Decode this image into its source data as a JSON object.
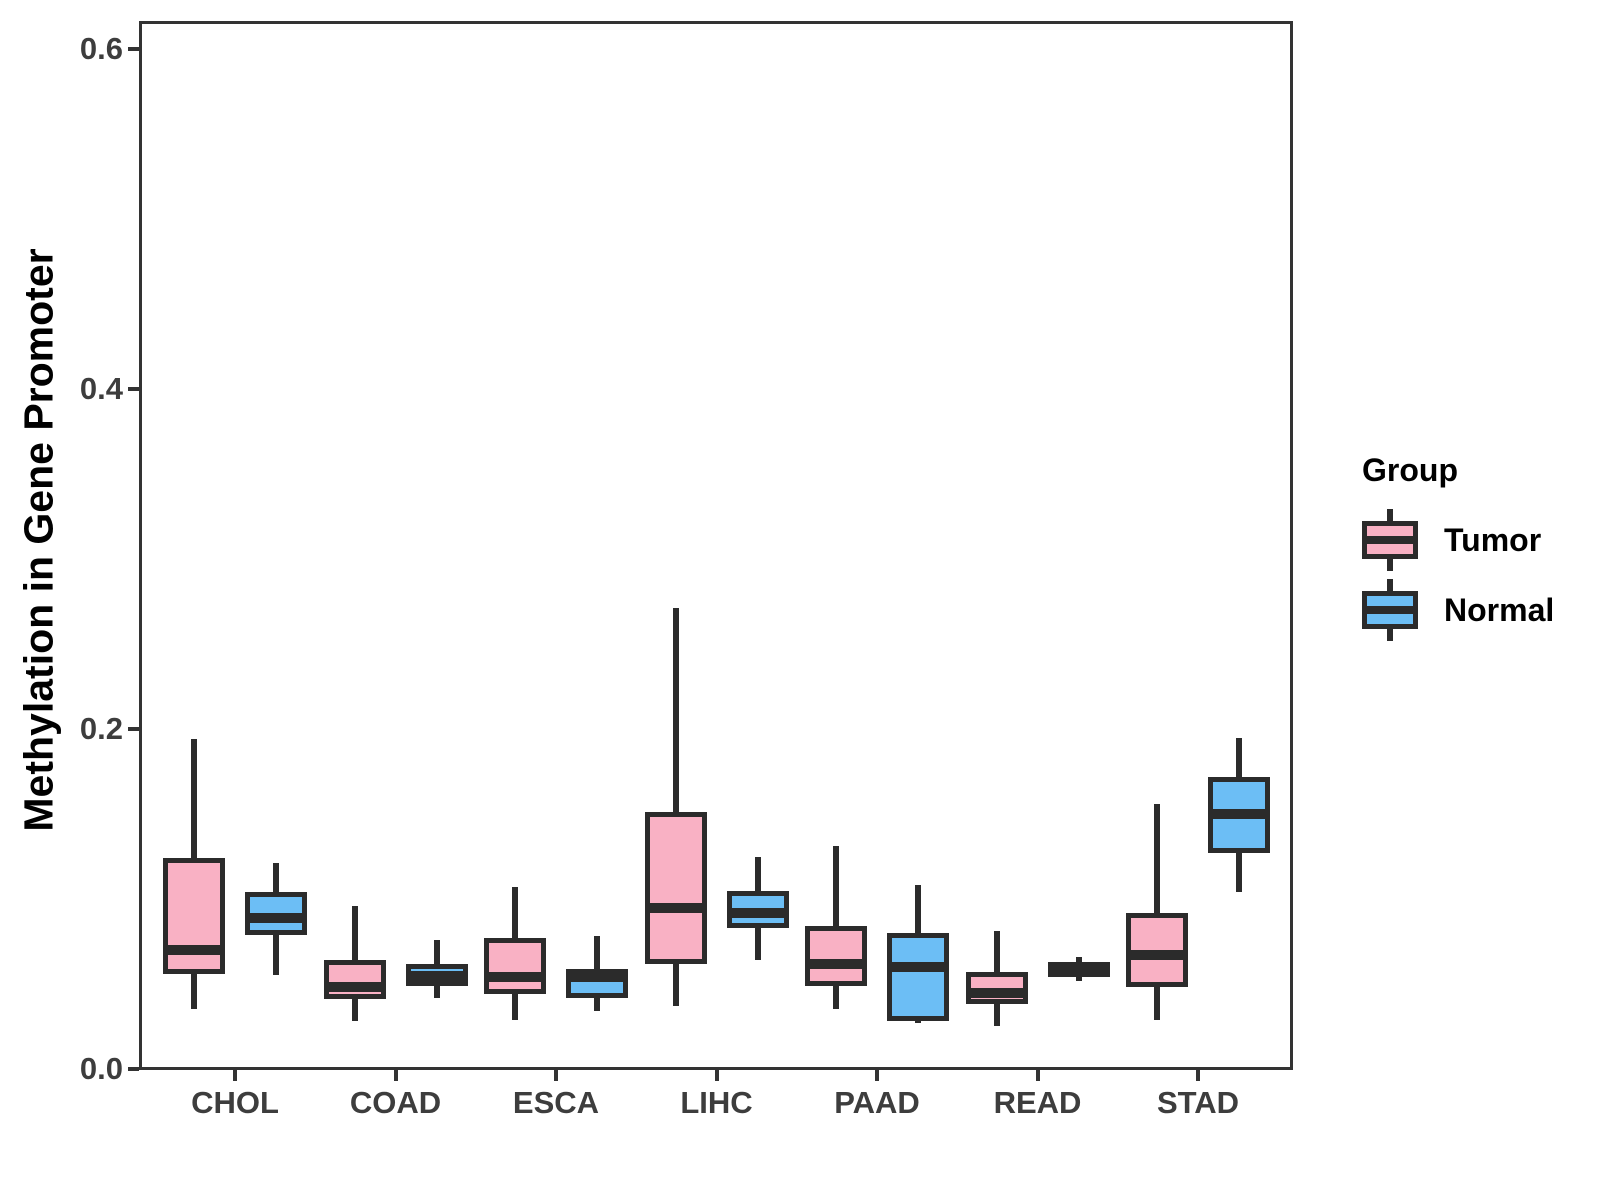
{
  "chart_data": {
    "type": "boxplot",
    "title": "",
    "xlabel": "",
    "ylabel": "Methylation in Gene Promoter",
    "categories": [
      "CHOL",
      "COAD",
      "ESCA",
      "LIHC",
      "PAAD",
      "READ",
      "STAD"
    ],
    "y_axis": {
      "range": [
        0,
        0.615
      ],
      "ticks": [
        {
          "value": 0.0,
          "label": "0.0"
        },
        {
          "value": 0.2,
          "label": "0.2"
        },
        {
          "value": 0.4,
          "label": "0.4"
        },
        {
          "value": 0.6,
          "label": "0.6"
        }
      ]
    },
    "grid": false,
    "legend": {
      "title": "Group",
      "position": "right-center",
      "entries": [
        {
          "label": "Tumor",
          "color": "#F9B1C4"
        },
        {
          "label": "Normal",
          "color": "#6CBEF5"
        }
      ]
    },
    "colors": {
      "tumor_fill": "#F9B1C4",
      "normal_fill": "#6CBEF5",
      "stroke": "#2B2B2B",
      "panel_border": "#333333",
      "tick_text": "#3D3D3D",
      "axis_title_text": "#000000"
    },
    "series": [
      {
        "name": "Tumor",
        "color": "#F9B1C4",
        "boxes": [
          {
            "category": "CHOL",
            "min": 0.035,
            "q1": 0.056,
            "median": 0.07,
            "q3": 0.124,
            "max": 0.194
          },
          {
            "category": "COAD",
            "min": 0.028,
            "q1": 0.041,
            "median": 0.048,
            "q3": 0.064,
            "max": 0.096
          },
          {
            "category": "ESCA",
            "min": 0.029,
            "q1": 0.044,
            "median": 0.054,
            "q3": 0.077,
            "max": 0.107
          },
          {
            "category": "LIHC",
            "min": 0.037,
            "q1": 0.062,
            "median": 0.095,
            "q3": 0.151,
            "max": 0.271
          },
          {
            "category": "PAAD",
            "min": 0.035,
            "q1": 0.049,
            "median": 0.062,
            "q3": 0.084,
            "max": 0.131
          },
          {
            "category": "READ",
            "min": 0.025,
            "q1": 0.038,
            "median": 0.045,
            "q3": 0.057,
            "max": 0.081
          },
          {
            "category": "STAD",
            "min": 0.029,
            "q1": 0.048,
            "median": 0.067,
            "q3": 0.092,
            "max": 0.156
          }
        ]
      },
      {
        "name": "Normal",
        "color": "#6CBEF5",
        "boxes": [
          {
            "category": "CHOL",
            "min": 0.055,
            "q1": 0.079,
            "median": 0.089,
            "q3": 0.104,
            "max": 0.121
          },
          {
            "category": "COAD",
            "min": 0.042,
            "q1": 0.049,
            "median": 0.055,
            "q3": 0.062,
            "max": 0.076
          },
          {
            "category": "ESCA",
            "min": 0.034,
            "q1": 0.042,
            "median": 0.054,
            "q3": 0.059,
            "max": 0.078
          },
          {
            "category": "LIHC",
            "min": 0.064,
            "q1": 0.083,
            "median": 0.092,
            "q3": 0.105,
            "max": 0.125
          },
          {
            "category": "PAAD",
            "min": 0.027,
            "q1": 0.028,
            "median": 0.06,
            "q3": 0.08,
            "max": 0.108
          },
          {
            "category": "READ",
            "min": 0.052,
            "q1": 0.054,
            "median": 0.058,
            "q3": 0.063,
            "max": 0.066
          },
          {
            "category": "STAD",
            "min": 0.104,
            "q1": 0.127,
            "median": 0.15,
            "q3": 0.172,
            "max": 0.195
          }
        ]
      }
    ]
  }
}
